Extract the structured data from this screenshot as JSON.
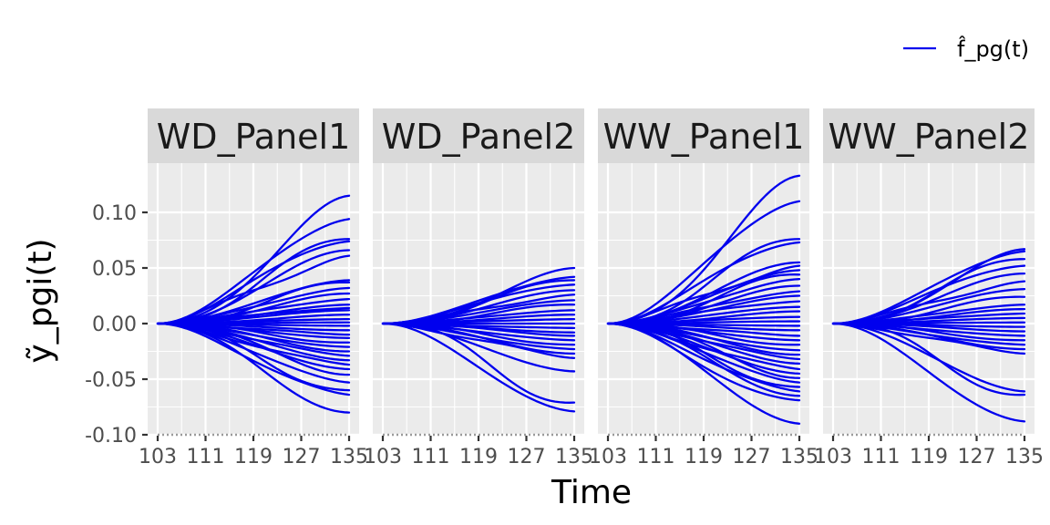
{
  "chart_data": {
    "type": "line",
    "facets": [
      "WD_Panel1",
      "WD_Panel2",
      "WW_Panel1",
      "WW_Panel2"
    ],
    "xlabel": "Time",
    "ylabel": "ỹ_pgi(t)",
    "xticks": [
      103,
      111,
      119,
      127,
      135
    ],
    "yticks": [
      -0.1,
      -0.05,
      0.0,
      0.05,
      0.1
    ],
    "ytick_labels": [
      "-0.10",
      "-0.05",
      "0.00",
      "0.05",
      "0.10"
    ],
    "xlim": [
      103,
      135
    ],
    "ylim": [
      -0.1,
      0.1
    ],
    "legend": {
      "label": "f̂_pg(t)",
      "position": "top-right"
    },
    "color": "#0000ee",
    "grid": true,
    "series_shape": "all curves start at 0.00 at time 103 and fan out smoothly; values below are the endpoints at time 135",
    "endpoints": {
      "WD_Panel1": [
        0.115,
        0.094,
        0.076,
        0.074,
        0.066,
        0.061,
        0.039,
        0.037,
        0.032,
        0.027,
        0.022,
        0.017,
        0.014,
        0.012,
        0.008,
        0.004,
        0.001,
        -0.002,
        -0.006,
        -0.01,
        -0.013,
        -0.017,
        -0.021,
        -0.025,
        -0.029,
        -0.033,
        -0.037,
        -0.041,
        -0.046,
        -0.053,
        -0.06,
        -0.064,
        -0.08
      ],
      "WD_Panel2": [
        0.05,
        0.042,
        0.039,
        0.035,
        0.03,
        0.026,
        0.021,
        0.017,
        0.012,
        0.008,
        0.004,
        0.0,
        -0.004,
        -0.008,
        -0.011,
        -0.015,
        -0.019,
        -0.023,
        -0.027,
        -0.031,
        -0.043,
        -0.071,
        -0.079
      ],
      "WW_Panel1": [
        0.133,
        0.11,
        0.076,
        0.073,
        0.055,
        0.052,
        0.048,
        0.044,
        0.04,
        0.034,
        0.029,
        0.025,
        0.02,
        0.015,
        0.011,
        0.006,
        0.002,
        -0.002,
        -0.006,
        -0.011,
        -0.015,
        -0.019,
        -0.024,
        -0.028,
        -0.032,
        -0.036,
        -0.041,
        -0.045,
        -0.049,
        -0.053,
        -0.057,
        -0.061,
        -0.065,
        -0.069,
        -0.09
      ],
      "WW_Panel2": [
        0.067,
        0.065,
        0.058,
        0.052,
        0.045,
        0.038,
        0.031,
        0.024,
        0.017,
        0.013,
        0.009,
        0.005,
        0.001,
        -0.003,
        -0.007,
        -0.011,
        -0.015,
        -0.019,
        -0.023,
        -0.027,
        -0.061,
        -0.064,
        -0.088
      ]
    }
  }
}
